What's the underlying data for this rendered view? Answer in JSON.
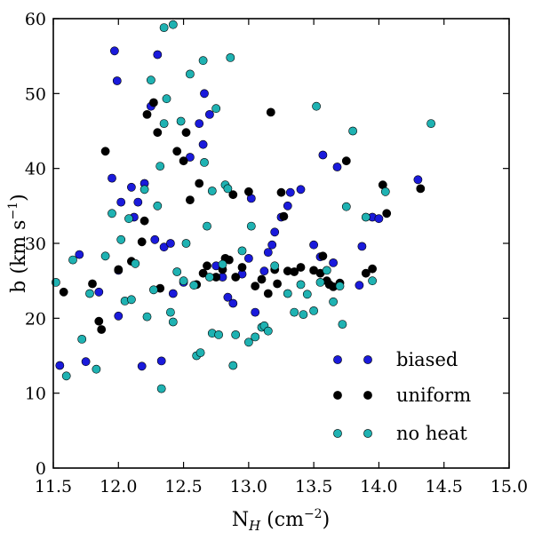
{
  "chart_data": {
    "type": "scatter",
    "title": "",
    "xlabel": "N_H (cm^-2)",
    "ylabel": "b (km s^-1)",
    "xlabel_parts": {
      "base": "N",
      "sub": "H",
      "unit_open": " (cm",
      "sup": "−2",
      "unit_close": ")"
    },
    "ylabel_parts": {
      "pre": "b (km s",
      "sup": "−1",
      "post": ")"
    },
    "xlim": [
      11.5,
      15.0
    ],
    "ylim": [
      0,
      60
    ],
    "xticks": [
      "11.5",
      "12.0",
      "12.5",
      "13.0",
      "13.5",
      "14.0",
      "14.5",
      "15.0"
    ],
    "yticks": [
      "0",
      "10",
      "20",
      "30",
      "40",
      "50",
      "60"
    ],
    "grid": false,
    "legend_position": "lower-right",
    "series": [
      {
        "name": "biased",
        "color": "#1a1adb",
        "points": [
          [
            11.55,
            13.7
          ],
          [
            11.75,
            14.2
          ],
          [
            11.7,
            28.5
          ],
          [
            11.85,
            23.5
          ],
          [
            11.95,
            38.7
          ],
          [
            11.97,
            55.7
          ],
          [
            11.99,
            51.7
          ],
          [
            12.0,
            20.3
          ],
          [
            12.0,
            26.4
          ],
          [
            12.02,
            35.5
          ],
          [
            12.1,
            37.5
          ],
          [
            12.12,
            33.5
          ],
          [
            12.15,
            35.5
          ],
          [
            12.18,
            13.6
          ],
          [
            12.2,
            38.0
          ],
          [
            12.25,
            48.3
          ],
          [
            12.28,
            30.5
          ],
          [
            12.3,
            55.2
          ],
          [
            12.33,
            14.3
          ],
          [
            12.35,
            29.5
          ],
          [
            12.4,
            30.0
          ],
          [
            12.42,
            23.3
          ],
          [
            12.5,
            24.8
          ],
          [
            12.55,
            41.5
          ],
          [
            12.62,
            46.0
          ],
          [
            12.65,
            43.2
          ],
          [
            12.66,
            50.0
          ],
          [
            12.7,
            47.2
          ],
          [
            12.75,
            27.0
          ],
          [
            12.8,
            25.5
          ],
          [
            12.84,
            22.8
          ],
          [
            12.88,
            22.0
          ],
          [
            12.95,
            25.9
          ],
          [
            13.0,
            28.0
          ],
          [
            13.02,
            36.0
          ],
          [
            13.05,
            20.8
          ],
          [
            13.12,
            26.3
          ],
          [
            13.15,
            28.8
          ],
          [
            13.18,
            29.8
          ],
          [
            13.2,
            31.5
          ],
          [
            13.25,
            33.5
          ],
          [
            13.3,
            35.0
          ],
          [
            13.32,
            36.8
          ],
          [
            13.4,
            37.2
          ],
          [
            13.5,
            29.8
          ],
          [
            13.55,
            28.2
          ],
          [
            13.57,
            41.8
          ],
          [
            13.65,
            27.4
          ],
          [
            13.68,
            40.2
          ],
          [
            13.85,
            24.4
          ],
          [
            13.87,
            29.6
          ],
          [
            13.95,
            33.5
          ],
          [
            14.0,
            33.3
          ],
          [
            14.3,
            38.5
          ]
        ]
      },
      {
        "name": "uniform",
        "color": "#000000",
        "points": [
          [
            11.58,
            23.5
          ],
          [
            11.8,
            24.6
          ],
          [
            11.85,
            19.6
          ],
          [
            11.87,
            18.5
          ],
          [
            11.9,
            42.3
          ],
          [
            12.0,
            26.5
          ],
          [
            12.1,
            27.6
          ],
          [
            12.18,
            30.2
          ],
          [
            12.2,
            33.0
          ],
          [
            12.22,
            47.2
          ],
          [
            12.27,
            48.8
          ],
          [
            12.3,
            44.8
          ],
          [
            12.32,
            24.0
          ],
          [
            12.45,
            42.3
          ],
          [
            12.5,
            41.0
          ],
          [
            12.52,
            44.8
          ],
          [
            12.55,
            35.8
          ],
          [
            12.6,
            24.5
          ],
          [
            12.62,
            38.0
          ],
          [
            12.65,
            26.0
          ],
          [
            12.68,
            27.0
          ],
          [
            12.75,
            25.5
          ],
          [
            12.8,
            26.5
          ],
          [
            12.82,
            28.0
          ],
          [
            12.85,
            27.8
          ],
          [
            12.88,
            36.5
          ],
          [
            12.9,
            25.5
          ],
          [
            12.95,
            26.8
          ],
          [
            13.0,
            36.9
          ],
          [
            13.05,
            24.3
          ],
          [
            13.1,
            25.2
          ],
          [
            13.15,
            23.3
          ],
          [
            13.17,
            47.5
          ],
          [
            13.2,
            26.5
          ],
          [
            13.22,
            24.6
          ],
          [
            13.25,
            36.8
          ],
          [
            13.27,
            33.6
          ],
          [
            13.3,
            26.3
          ],
          [
            13.35,
            26.2
          ],
          [
            13.4,
            26.8
          ],
          [
            13.5,
            26.4
          ],
          [
            13.55,
            26.0
          ],
          [
            13.57,
            28.3
          ],
          [
            13.6,
            25.0
          ],
          [
            13.62,
            24.5
          ],
          [
            13.65,
            24.2
          ],
          [
            13.7,
            24.7
          ],
          [
            13.75,
            41.0
          ],
          [
            13.9,
            26.0
          ],
          [
            13.95,
            26.6
          ],
          [
            14.03,
            37.8
          ],
          [
            14.06,
            34.0
          ],
          [
            14.32,
            37.3
          ]
        ]
      },
      {
        "name": "no heat",
        "color": "#1fb2b2",
        "points": [
          [
            11.52,
            24.8
          ],
          [
            11.6,
            12.3
          ],
          [
            11.65,
            27.8
          ],
          [
            11.72,
            17.2
          ],
          [
            11.78,
            23.3
          ],
          [
            11.83,
            13.2
          ],
          [
            11.9,
            28.3
          ],
          [
            11.95,
            34.0
          ],
          [
            12.02,
            30.5
          ],
          [
            12.05,
            22.3
          ],
          [
            12.08,
            33.3
          ],
          [
            12.1,
            22.5
          ],
          [
            12.13,
            27.3
          ],
          [
            12.2,
            37.2
          ],
          [
            12.22,
            20.2
          ],
          [
            12.25,
            51.8
          ],
          [
            12.27,
            23.8
          ],
          [
            12.3,
            35.0
          ],
          [
            12.32,
            40.3
          ],
          [
            12.33,
            10.6
          ],
          [
            12.35,
            46.0
          ],
          [
            12.37,
            49.3
          ],
          [
            12.4,
            20.8
          ],
          [
            12.42,
            19.5
          ],
          [
            12.45,
            26.2
          ],
          [
            12.48,
            46.3
          ],
          [
            12.5,
            25.0
          ],
          [
            12.52,
            30.0
          ],
          [
            12.55,
            52.6
          ],
          [
            12.58,
            24.4
          ],
          [
            12.6,
            15.0
          ],
          [
            12.63,
            15.4
          ],
          [
            12.65,
            54.4
          ],
          [
            12.66,
            40.8
          ],
          [
            12.68,
            32.3
          ],
          [
            12.7,
            25.5
          ],
          [
            12.72,
            18.0
          ],
          [
            12.75,
            48.0
          ],
          [
            12.77,
            17.8
          ],
          [
            12.8,
            27.2
          ],
          [
            12.82,
            37.8
          ],
          [
            12.84,
            37.3
          ],
          [
            12.86,
            54.8
          ],
          [
            12.88,
            13.7
          ],
          [
            12.9,
            17.8
          ],
          [
            12.95,
            29.0
          ],
          [
            13.0,
            16.8
          ],
          [
            13.02,
            32.3
          ],
          [
            13.05,
            17.5
          ],
          [
            13.1,
            18.8
          ],
          [
            13.12,
            19.0
          ],
          [
            13.15,
            18.3
          ],
          [
            13.2,
            27.0
          ],
          [
            13.3,
            23.3
          ],
          [
            13.35,
            20.8
          ],
          [
            13.4,
            24.5
          ],
          [
            13.42,
            20.5
          ],
          [
            13.45,
            23.2
          ],
          [
            13.5,
            21.0
          ],
          [
            13.52,
            48.3
          ],
          [
            13.55,
            24.8
          ],
          [
            13.6,
            26.4
          ],
          [
            13.65,
            22.2
          ],
          [
            13.7,
            24.3
          ],
          [
            13.72,
            19.2
          ],
          [
            13.75,
            34.9
          ],
          [
            13.8,
            45.0
          ],
          [
            13.9,
            33.5
          ],
          [
            13.95,
            25.0
          ],
          [
            14.05,
            36.9
          ],
          [
            14.4,
            46.0
          ],
          [
            12.35,
            58.8
          ],
          [
            12.42,
            59.2
          ],
          [
            12.72,
            37.0
          ]
        ]
      }
    ]
  }
}
